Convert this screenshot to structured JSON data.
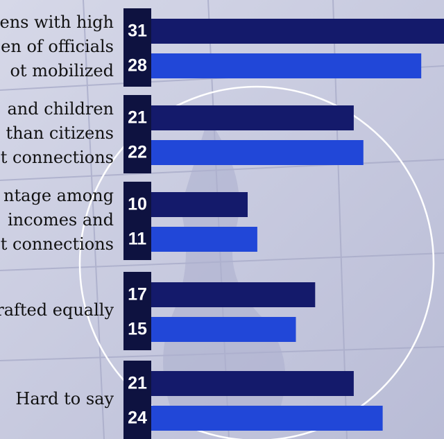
{
  "chart_data": {
    "type": "bar",
    "orientation": "horizontal",
    "categories": [
      [
        "ens with high",
        "en of officials",
        "ot mobilized"
      ],
      [
        "and children",
        "than citizens",
        "t connections"
      ],
      [
        "ntage among",
        "incomes and",
        "t connections"
      ],
      [
        "rafted equally"
      ],
      [
        "Hard to say"
      ]
    ],
    "series": [
      {
        "color": "#141a6b",
        "values": [
          31,
          21,
          10,
          17,
          21
        ]
      },
      {
        "color": "#2147d8",
        "values": [
          28,
          22,
          11,
          15,
          24
        ]
      }
    ]
  }
}
